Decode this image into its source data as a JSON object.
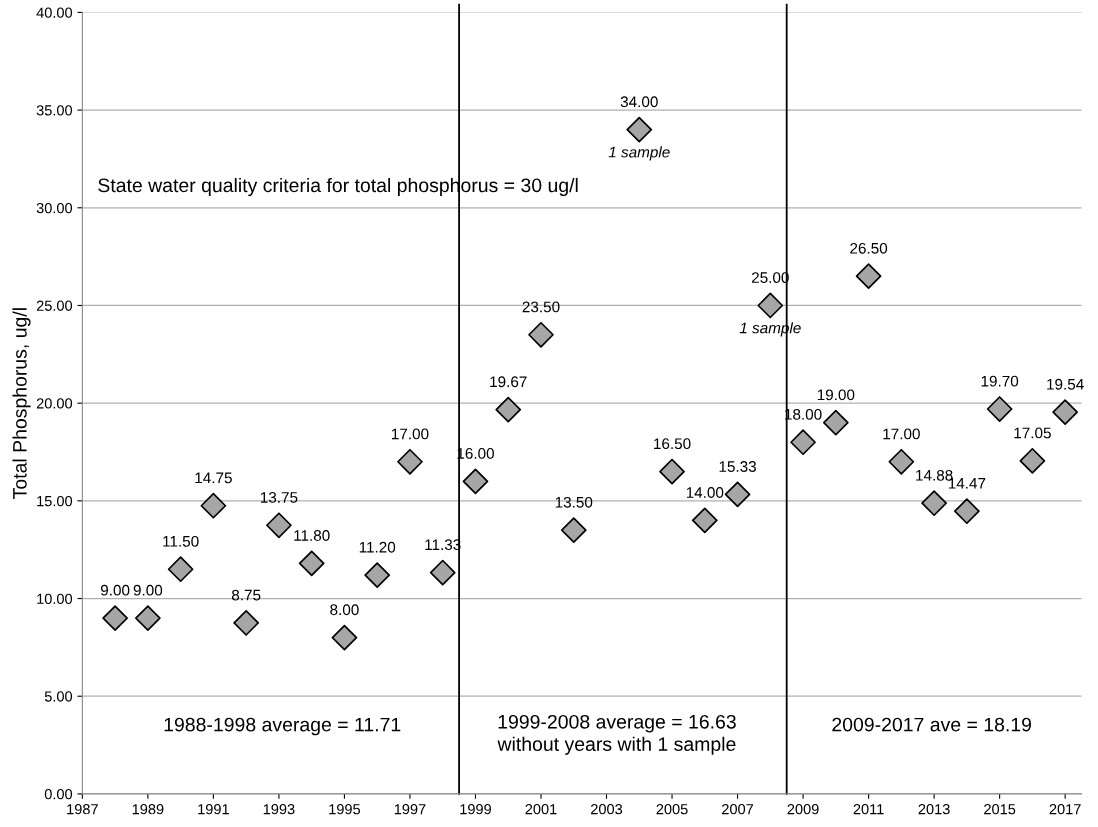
{
  "chart_data": {
    "type": "scatter",
    "ylabel": "Total Phosphorus, ug/l",
    "x": [
      1988,
      1989,
      1990,
      1991,
      1992,
      1993,
      1994,
      1995,
      1996,
      1997,
      1998,
      1999,
      2000,
      2001,
      2002,
      2004,
      2005,
      2006,
      2007,
      2008,
      2009,
      2010,
      2011,
      2012,
      2013,
      2014,
      2015,
      2016,
      2017
    ],
    "series": [
      {
        "color": "#a6a6a6",
        "values": [
          9.0,
          9.0,
          11.5,
          14.75,
          8.75,
          13.75,
          11.8,
          8.0,
          11.2,
          17.0,
          11.33,
          16.0,
          19.67,
          23.5,
          13.5,
          34.0,
          16.5,
          14.0,
          15.33,
          25.0,
          18.0,
          19.0,
          26.5,
          17.0,
          14.88,
          14.47,
          19.7,
          17.05,
          19.54
        ],
        "value_labels": [
          "9.00",
          "9.00",
          "11.50",
          "14.75",
          "8.75",
          "13.75",
          "11.80",
          "8.00",
          "11.20",
          "17.00",
          "11.33",
          "16.00",
          "19.67",
          "23.50",
          "13.50",
          "34.00",
          "16.50",
          "14.00",
          "15.33",
          "25.00",
          "18.00",
          "19.00",
          "26.50",
          "17.00",
          "14.88",
          "14.47",
          "19.70",
          "17.05",
          "19.54"
        ]
      }
    ],
    "marker": "diamond",
    "xlim": [
      1987,
      2017.5
    ],
    "xticks": [
      1987,
      1989,
      1991,
      1993,
      1995,
      1997,
      1999,
      2001,
      2003,
      2005,
      2007,
      2009,
      2011,
      2013,
      2015,
      2017
    ],
    "ylim": [
      0,
      40
    ],
    "yticks": [
      {
        "value": 0,
        "label": "0.00"
      },
      {
        "value": 5,
        "label": "5.00"
      },
      {
        "value": 10,
        "label": "10.00"
      },
      {
        "value": 15,
        "label": "15.00"
      },
      {
        "value": 20,
        "label": "20.00"
      },
      {
        "value": 25,
        "label": "25.00"
      },
      {
        "value": 30,
        "label": "30.00"
      },
      {
        "value": 35,
        "label": "35.00"
      },
      {
        "value": 40,
        "label": "40.00"
      }
    ],
    "grid": "y",
    "legend": false,
    "ref_lines": [
      {
        "axis": "x",
        "value": 1998.5,
        "color": "#000000"
      },
      {
        "axis": "x",
        "value": 2008.5,
        "color": "#000000"
      }
    ],
    "annotations": [
      "State water quality criteria for total phosphorus = 30 ug/l",
      "1988-1998 average = 11.71",
      "1999-2008 average = 16.63\nwithout years with 1 sample",
      "2009-2017 ave = 18.19",
      {
        "text": "1 sample",
        "x": 2004,
        "y": 34
      },
      {
        "text": "1 sample",
        "x": 2008,
        "y": 25
      }
    ]
  }
}
